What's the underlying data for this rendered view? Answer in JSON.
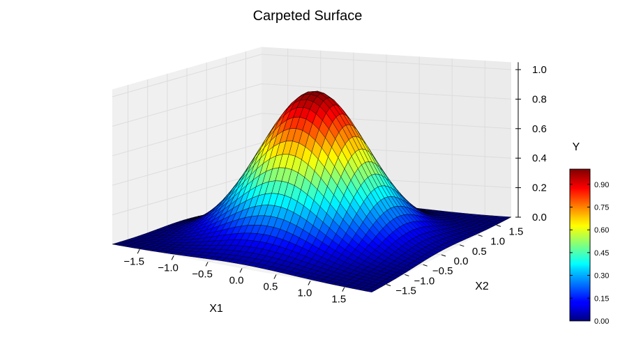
{
  "chart_data": {
    "type": "surface3d",
    "title": "Carpeted Surface",
    "xlabel": "X1",
    "ylabel": "X2",
    "zlabel": "Y",
    "x_ticks": [
      "−1.5",
      "−1.0",
      "−0.5",
      "0.0",
      "0.5",
      "1.0",
      "1.5"
    ],
    "y_ticks": [
      "−1.5",
      "−1.0",
      "−0.5",
      "0.0",
      "0.5",
      "1.0",
      "1.5"
    ],
    "z_ticks": [
      "0.0",
      "0.2",
      "0.4",
      "0.6",
      "0.8",
      "1.0"
    ],
    "xlim": [
      -1.9,
      1.9
    ],
    "ylim": [
      -1.9,
      1.9
    ],
    "zlim": [
      0,
      1.05
    ],
    "surface": {
      "function": "exp(-(x1^2 + x2^2))",
      "peak_value": 1.0,
      "peak_at": [
        0,
        0
      ],
      "min_value": 0.0,
      "grid_points": 40,
      "colormap": "jet"
    },
    "colorbar": {
      "label": "Y",
      "ticks": [
        "0.00",
        "0.15",
        "0.30",
        "0.45",
        "0.60",
        "0.75",
        "0.90"
      ],
      "range": [
        0.0,
        1.0
      ]
    },
    "grid": true
  }
}
